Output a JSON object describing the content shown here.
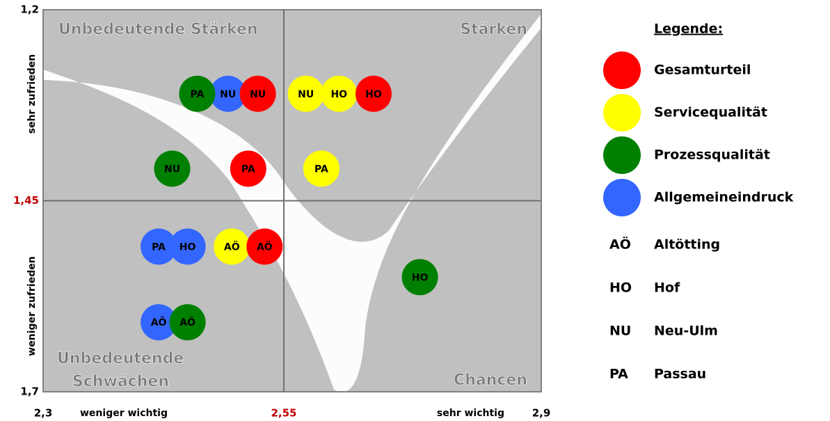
{
  "chart_data": {
    "type": "scatter",
    "legend_title": "Legende:",
    "quadrants": {
      "top_left": "Unbedeutende Stärken",
      "top_right": "Stärken",
      "bottom_left": [
        "Unbedeutende",
        "Schwächen"
      ],
      "bottom_right": "Chancen"
    },
    "x_label_low": "weniger wichtig",
    "x_label_high": "sehr wichtig",
    "y_label_high": "sehr zufrieden",
    "y_label_low": "weniger zufrieden",
    "xlim": [
      2.3,
      2.9
    ],
    "xticks": [
      {
        "value": 2.3,
        "label": "2,3"
      },
      {
        "value": 2.55,
        "label": "2,55"
      },
      {
        "value": 2.9,
        "label": "2,9"
      }
    ],
    "ylim": [
      1.7,
      1.2
    ],
    "yticks": [
      {
        "value": 1.2,
        "label": "1,2"
      },
      {
        "value": 1.45,
        "label": "1,45"
      },
      {
        "value": 1.7,
        "label": "1,7"
      }
    ],
    "series": [
      {
        "name": "Gesamturteil",
        "color": "#ff0000",
        "x": [
          2.523,
          2.672,
          2.513,
          2.53
        ],
        "values": [
          1.31,
          1.31,
          1.408,
          1.51
        ],
        "point_labels": [
          "NU",
          "HO",
          "PA",
          "AÖ"
        ]
      },
      {
        "name": "Servicequalität",
        "color": "#ffff00",
        "x": [
          2.58,
          2.625,
          2.601,
          2.496
        ],
        "values": [
          1.31,
          1.31,
          1.408,
          1.51
        ],
        "point_labels": [
          "NU",
          "HO",
          "PA",
          "AÖ"
        ]
      },
      {
        "name": "Prozessqualität",
        "color": "#008000",
        "x": [
          2.46,
          2.434,
          2.735,
          2.45
        ],
        "values": [
          1.31,
          1.408,
          1.55,
          1.609
        ],
        "point_labels": [
          "PA",
          "NU",
          "HO",
          "AÖ"
        ]
      },
      {
        "name": "Allgemeineindruck",
        "color": "#3366ff",
        "x": [
          2.492,
          2.42,
          2.45,
          2.42
        ],
        "values": [
          1.31,
          1.51,
          1.51,
          1.609
        ],
        "point_labels": [
          "NU",
          "PA",
          "HO",
          "AÖ"
        ]
      }
    ],
    "location_legend": [
      {
        "code": "AÖ",
        "name": "Altötting"
      },
      {
        "code": "HO",
        "name": "Hof"
      },
      {
        "code": "NU",
        "name": "Neu-Ulm"
      },
      {
        "code": "PA",
        "name": "Passau"
      }
    ]
  }
}
